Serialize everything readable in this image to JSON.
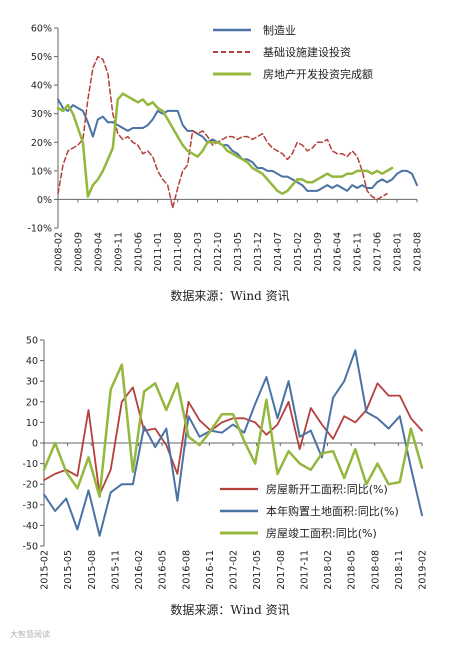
{
  "chart_data": [
    {
      "type": "line",
      "ylim": [
        -10,
        60
      ],
      "yticks": [
        -10,
        0,
        10,
        20,
        30,
        40,
        50,
        60
      ],
      "ytick_labels": [
        "-10%",
        "0%",
        "10%",
        "20%",
        "30%",
        "40%",
        "50%",
        "60%"
      ],
      "x_tick_labels": [
        "2008-02",
        "2008-09",
        "2009-04",
        "2009-11",
        "2010-06",
        "2011-01",
        "2011-08",
        "2012-03",
        "2012-10",
        "2013-05",
        "2013-12",
        "2014-07",
        "2015-02",
        "2015-09",
        "2016-04",
        "2016-11",
        "2017-06",
        "2018-01",
        "2018-08"
      ],
      "x_start": "2008-02",
      "legend_position": "top-right",
      "source": "数据来源：Wind 资讯",
      "series": [
        {
          "name": "制造业",
          "color": "#4a72a4",
          "dash": "solid",
          "width": 2,
          "values": [
            35,
            32,
            31,
            33,
            32,
            31,
            27,
            22,
            28,
            29,
            27,
            27,
            26,
            25,
            24,
            25,
            25,
            25,
            26,
            28,
            31,
            30,
            31,
            31,
            31,
            26,
            24,
            24,
            23,
            22,
            20,
            21,
            20,
            19,
            19,
            17,
            16,
            14,
            14,
            13,
            11,
            11,
            10,
            10,
            9,
            8,
            8,
            7,
            6,
            5,
            3,
            3,
            3,
            4,
            5,
            4,
            5,
            4,
            3,
            5,
            4,
            5,
            4,
            4,
            6,
            7,
            6,
            7,
            9,
            10,
            10,
            9,
            5
          ]
        },
        {
          "name": "基础设施建设投资",
          "color": "#b5403b",
          "dash": "5,3",
          "width": 1.5,
          "values": [
            2,
            12,
            17,
            18,
            19,
            21,
            35,
            46,
            50,
            49,
            44,
            30,
            23,
            21,
            22,
            20,
            19,
            16,
            17,
            15,
            10,
            7,
            5,
            -3,
            4,
            10,
            12,
            24,
            23,
            24,
            22,
            19,
            20,
            21,
            22,
            22,
            21,
            22,
            22,
            21,
            22,
            23,
            20,
            18,
            17,
            16,
            14,
            16,
            20,
            19,
            17,
            18,
            20,
            20,
            21,
            17,
            16,
            16,
            15,
            17,
            15,
            10,
            3,
            1,
            0,
            1,
            2
          ]
        },
        {
          "name": "房地产开发投资完成额",
          "color": "#93b83d",
          "dash": "solid",
          "width": 2.5,
          "values": [
            32,
            31,
            33,
            30,
            25,
            20,
            1,
            5,
            7,
            10,
            14,
            18,
            35,
            37,
            36,
            35,
            34,
            35,
            33,
            34,
            32,
            31,
            28,
            25,
            22,
            19,
            17,
            16,
            15,
            17,
            20,
            20,
            20,
            19,
            17,
            16,
            15,
            14,
            13,
            11,
            10,
            9,
            7,
            5,
            3,
            2,
            3,
            5,
            7,
            7,
            6,
            6,
            7,
            8,
            9,
            8,
            8,
            8,
            9,
            9,
            10,
            10,
            10,
            9,
            10,
            9,
            10,
            11
          ]
        }
      ]
    },
    {
      "type": "line",
      "ylim": [
        -50,
        50
      ],
      "yticks": [
        -50,
        -40,
        -30,
        -20,
        -10,
        0,
        10,
        20,
        30,
        40,
        50
      ],
      "ytick_labels": [
        "-50",
        "-40",
        "-30",
        "-20",
        "-10",
        "0",
        "10",
        "20",
        "30",
        "40",
        "50"
      ],
      "x_tick_labels": [
        "2015-02",
        "2015-05",
        "2015-08",
        "2015-11",
        "2016-02",
        "2016-05",
        "2016-08",
        "2016-11",
        "2017-02",
        "2017-05",
        "2017-08",
        "2017-11",
        "2018-02",
        "2018-05",
        "2018-08",
        "2018-11",
        "2019-02"
      ],
      "x_start": "2015-02",
      "legend_position": "bottom-center",
      "source": "数据来源：Wind 资讯",
      "series": [
        {
          "name": "房屋新开工面积:同比(%)",
          "color": "#b5403b",
          "dash": "solid",
          "width": 1.8,
          "values": [
            -18,
            -15,
            -13,
            -16,
            16,
            -25,
            -13,
            20,
            27,
            6,
            7,
            -1,
            -15,
            20,
            11,
            6,
            10,
            12,
            12,
            10,
            4,
            9,
            20,
            -3,
            17,
            9,
            2,
            13,
            10,
            16,
            29,
            23,
            23,
            12,
            6
          ]
        },
        {
          "name": "本年购置土地面积:同比(%)",
          "color": "#4a72a4",
          "dash": "solid",
          "width": 2,
          "values": [
            -25,
            -33,
            -27,
            -42,
            -23,
            -45,
            -24,
            -20,
            -20,
            8,
            -2,
            7,
            -28,
            13,
            3,
            6,
            5,
            9,
            5,
            19,
            32,
            12,
            30,
            3,
            6,
            -7,
            22,
            30,
            45,
            15,
            12,
            7,
            13,
            -12,
            -35
          ]
        },
        {
          "name": "房屋竣工面积:同比(%)",
          "color": "#93b83d",
          "dash": "solid",
          "width": 2.5,
          "values": [
            -13,
            0,
            -14,
            -22,
            -7,
            -26,
            26,
            38,
            -14,
            25,
            29,
            16,
            29,
            3,
            -1,
            6,
            14,
            14,
            1,
            -10,
            21,
            -15,
            -4,
            -10,
            -13,
            -5,
            -4,
            -17,
            -3,
            -20,
            -10,
            -20,
            -19,
            7,
            -12
          ]
        }
      ]
    }
  ],
  "watermark": "大智慧阅读"
}
